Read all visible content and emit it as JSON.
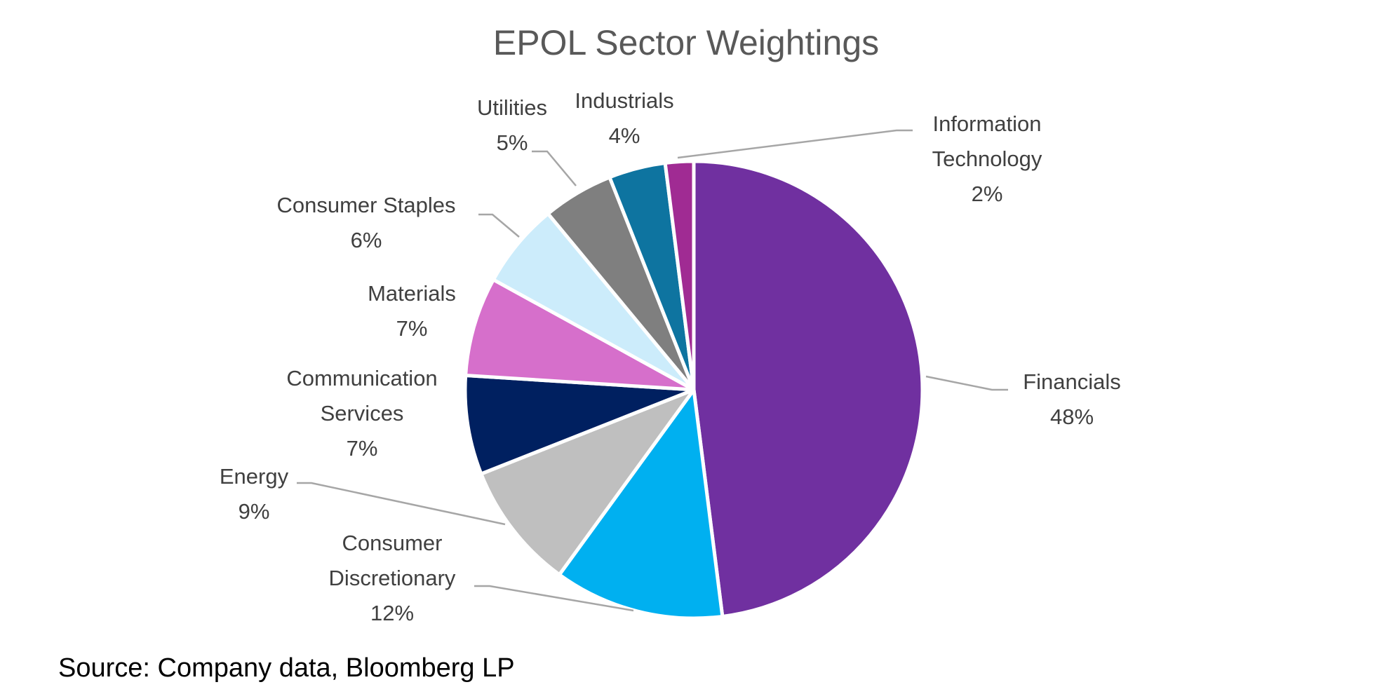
{
  "chart_data": {
    "type": "pie",
    "title": "EPOL Sector Weightings",
    "source": "Source: Company data, Bloomberg LP",
    "slices": [
      {
        "label": [
          "Financials"
        ],
        "value": 48,
        "display": "48%",
        "color": "#7030A0"
      },
      {
        "label": [
          "Consumer",
          "Discretionary"
        ],
        "value": 12,
        "display": "12%",
        "color": "#00B0F0"
      },
      {
        "label": [
          "Energy"
        ],
        "value": 9,
        "display": "9%",
        "color": "#BFBFBF"
      },
      {
        "label": [
          "Communication",
          "Services"
        ],
        "value": 7,
        "display": "7%",
        "color": "#002060"
      },
      {
        "label": [
          "Materials"
        ],
        "value": 7,
        "display": "7%",
        "color": "#D66FCB"
      },
      {
        "label": [
          "Consumer Staples"
        ],
        "value": 6,
        "display": "6%",
        "color": "#CCECFB"
      },
      {
        "label": [
          "Utilities"
        ],
        "value": 5,
        "display": "5%",
        "color": "#7F7F7F"
      },
      {
        "label": [
          "Industrials"
        ],
        "value": 4,
        "display": "4%",
        "color": "#0E74A0"
      },
      {
        "label": [
          "Information",
          "Technology"
        ],
        "value": 2,
        "display": "2%",
        "color": "#A02B93"
      }
    ],
    "start_angle": "12 o'clock",
    "direction": "clockwise",
    "legend": "none",
    "data_labels": "outside with leader lines"
  }
}
